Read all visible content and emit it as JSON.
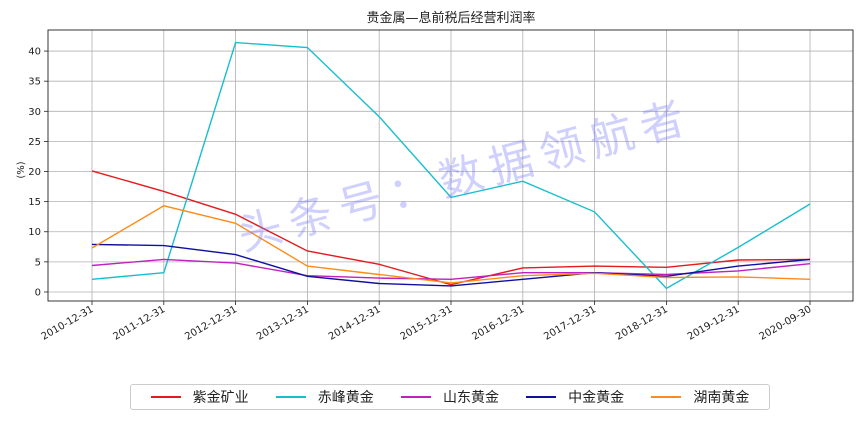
{
  "chart_data": {
    "type": "line",
    "title": "贵金属—息前税后经营利润率",
    "ylabel": "(%)",
    "xlabel": "",
    "ylim": [
      -1.5,
      43.5
    ],
    "yticks": [
      0,
      5,
      10,
      15,
      20,
      25,
      30,
      35,
      40
    ],
    "categories": [
      "2010-12-31",
      "2011-12-31",
      "2012-12-31",
      "2013-12-31",
      "2014-12-31",
      "2015-12-31",
      "2016-12-31",
      "2017-12-31",
      "2018-12-31",
      "2019-12-31",
      "2020-09-30"
    ],
    "grid": true,
    "legend_position": "bottom",
    "series": [
      {
        "name": "紫金矿业",
        "color": "#e41a1c",
        "values": [
          20.1,
          16.7,
          12.9,
          6.8,
          4.6,
          1.2,
          4.0,
          4.3,
          4.1,
          5.3,
          5.4
        ]
      },
      {
        "name": "赤峰黄金",
        "color": "#17becf",
        "values": [
          2.1,
          3.2,
          41.4,
          40.6,
          29.1,
          15.7,
          18.4,
          13.3,
          0.6,
          7.4,
          14.6
        ]
      },
      {
        "name": "山东黄金",
        "color": "#c020c0",
        "values": [
          4.4,
          5.4,
          4.8,
          2.7,
          2.3,
          2.1,
          3.2,
          3.2,
          2.9,
          3.5,
          4.7
        ]
      },
      {
        "name": "中金黄金",
        "color": "#1010a0",
        "values": [
          7.9,
          7.7,
          6.2,
          2.6,
          1.4,
          1.0,
          2.1,
          3.2,
          2.6,
          4.3,
          5.4
        ]
      },
      {
        "name": "湖南黄金",
        "color": "#ff8c1a",
        "values": [
          7.3,
          14.3,
          11.4,
          4.3,
          2.9,
          1.5,
          2.7,
          3.1,
          2.4,
          2.5,
          2.1
        ]
      }
    ]
  },
  "watermark": "头条号：数据领航者"
}
